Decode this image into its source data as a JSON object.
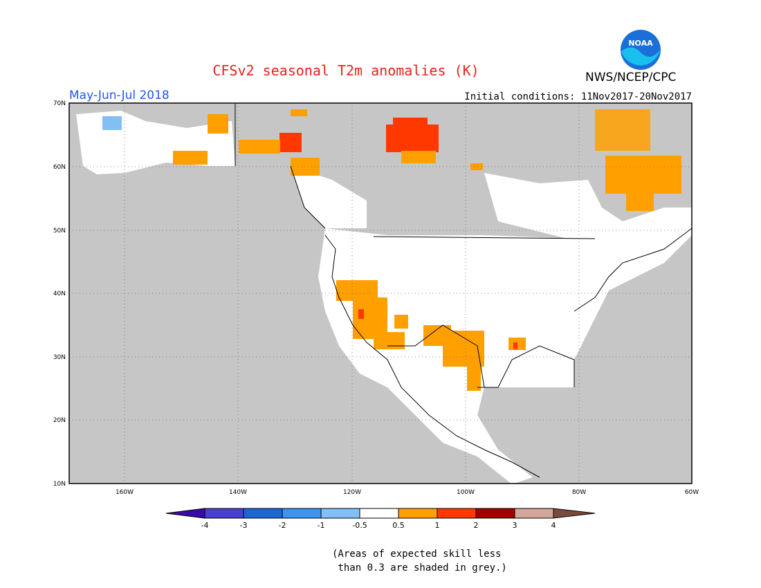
{
  "header": {
    "title": "CFSv2 seasonal T2m anomalies (K)",
    "agency": "NWS/NCEP/CPC",
    "season": "May-Jun-Jul 2018",
    "initial_conditions": "Initial conditions: 11Nov2017-20Nov2017",
    "logo_text": "NOAA"
  },
  "map": {
    "lon_ticks": [
      "160W",
      "140W",
      "120W",
      "100W",
      "80W",
      "60W"
    ],
    "lat_ticks": [
      "70N",
      "60N",
      "50N",
      "40N",
      "30N",
      "20N",
      "10N"
    ],
    "lon_range": [
      -172,
      -60
    ],
    "lat_range": [
      10,
      70
    ],
    "grid": "dotted",
    "land_color": "#ffffff",
    "ocean_color": "#c6c6c6"
  },
  "legend": {
    "levels": [
      "-4",
      "-3",
      "-2",
      "-1",
      "-0.5",
      "0.5",
      "1",
      "2",
      "3",
      "4"
    ],
    "colors": [
      "#3a0aa8",
      "#4a40d0",
      "#1f66d0",
      "#3e93ef",
      "#82bff5",
      "#ffffff",
      "#ffa000",
      "#ff3800",
      "#a20000",
      "#d4a79a",
      "#7a4a3a"
    ]
  },
  "footnote": {
    "line1": "(Areas of expected skill less",
    "line2": " than 0.3 are shaded in grey.)"
  }
}
